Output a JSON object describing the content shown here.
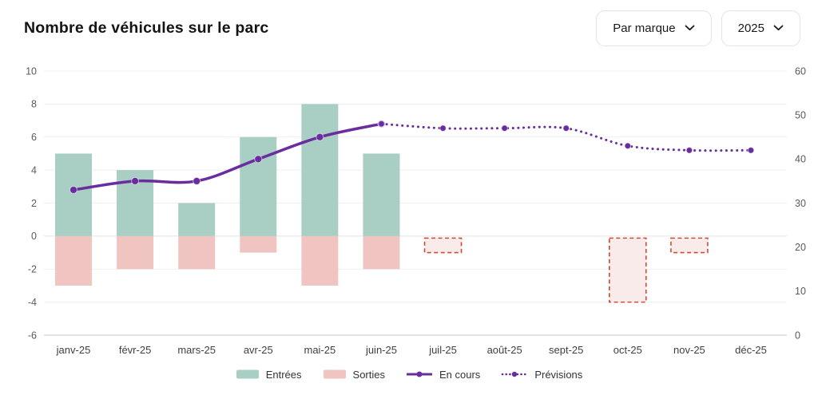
{
  "header": {
    "title": "Nombre de véhicules sur le parc",
    "filters": [
      {
        "label": "Par marque"
      },
      {
        "label": "2025"
      }
    ]
  },
  "chart_data": {
    "type": "combo",
    "title": "Nombre de véhicules sur le parc",
    "categories": [
      "janv-25",
      "févr-25",
      "mars-25",
      "avr-25",
      "mai-25",
      "juin-25",
      "juil-25",
      "août-25",
      "sept-25",
      "oct-25",
      "nov-25",
      "déc-25"
    ],
    "left_axis": {
      "min": -6,
      "max": 10,
      "ticks": [
        10,
        8,
        6,
        4,
        2,
        0,
        -2,
        -4,
        -6
      ]
    },
    "right_axis": {
      "min": 0,
      "max": 60,
      "ticks": [
        60,
        50,
        40,
        30,
        20,
        10,
        0
      ]
    },
    "grid": true,
    "legend_position": "bottom",
    "series": [
      {
        "name": "Entrées",
        "type": "bar",
        "axis": "left",
        "color": "#a9cec3",
        "values": [
          5,
          4,
          2,
          6,
          8,
          5,
          null,
          null,
          null,
          null,
          null,
          null
        ]
      },
      {
        "name": "Sorties",
        "type": "bar",
        "axis": "left",
        "color": "#f0c5c1",
        "values": [
          -3,
          -2,
          -2,
          -1,
          -3,
          -2,
          null,
          null,
          null,
          null,
          null,
          null
        ]
      },
      {
        "name": "Sorties prévisionnelles",
        "type": "bar",
        "style": "dashed",
        "axis": "left",
        "fill": "#f9ebea",
        "border": "#cf4937",
        "values": [
          null,
          null,
          null,
          null,
          null,
          null,
          -1,
          null,
          null,
          -4,
          -1,
          null
        ]
      },
      {
        "name": "En cours",
        "type": "line",
        "axis": "right",
        "color": "#6a2d9e",
        "values": [
          33,
          35,
          35,
          40,
          45,
          48,
          null,
          null,
          null,
          null,
          null,
          null
        ]
      },
      {
        "name": "Prévisions",
        "type": "line",
        "style": "dotted",
        "axis": "right",
        "color": "#6a2d9e",
        "values": [
          null,
          null,
          null,
          null,
          null,
          48,
          47,
          47,
          47,
          43,
          42,
          42
        ]
      }
    ]
  },
  "legend": {
    "items": [
      {
        "label": "Entrées",
        "swatch": "bar",
        "color": "#a9cec3"
      },
      {
        "label": "Sorties",
        "swatch": "bar",
        "color": "#f0c5c1"
      },
      {
        "label": "En cours",
        "swatch": "line",
        "color": "#6a2d9e"
      },
      {
        "label": "Prévisions",
        "swatch": "line-dotted",
        "color": "#6a2d9e"
      }
    ]
  },
  "colors": {
    "grid": "#efefef",
    "zero_line": "#e2e2e2",
    "axis_line": "#d8d8d8",
    "tick_text": "#5a5a5a",
    "month_text": "#3f3f3f"
  }
}
